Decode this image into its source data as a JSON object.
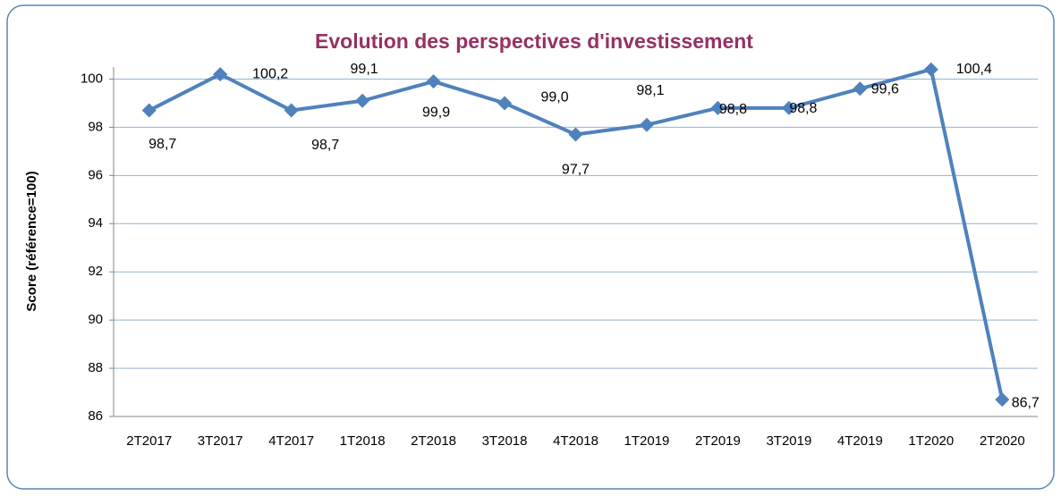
{
  "chart_data": {
    "type": "line",
    "title": "Evolution des perspectives d'investissement",
    "y_label": "Score (référence=100)",
    "categories": [
      "2T2017",
      "3T2017",
      "4T2017",
      "1T2018",
      "2T2018",
      "3T2018",
      "4T2018",
      "1T2019",
      "2T2019",
      "3T2019",
      "4T2019",
      "1T2020",
      "2T2020"
    ],
    "series": [
      {
        "name": "Score",
        "color": "#4f81bd",
        "values": [
          98.7,
          100.2,
          98.7,
          99.1,
          99.9,
          99.0,
          97.7,
          98.1,
          98.8,
          98.8,
          99.6,
          100.4,
          86.7
        ],
        "value_labels": [
          "98,7",
          "100,2",
          "98,7",
          "99,1",
          "99,9",
          "99,0",
          "97,7",
          "98,1",
          "98,8",
          "98,8",
          "99,6",
          "100,4",
          "86,7"
        ]
      }
    ],
    "ylim": [
      86,
      100.5
    ],
    "yticks": [
      86,
      88,
      90,
      92,
      94,
      96,
      98,
      100
    ],
    "grid": true
  }
}
